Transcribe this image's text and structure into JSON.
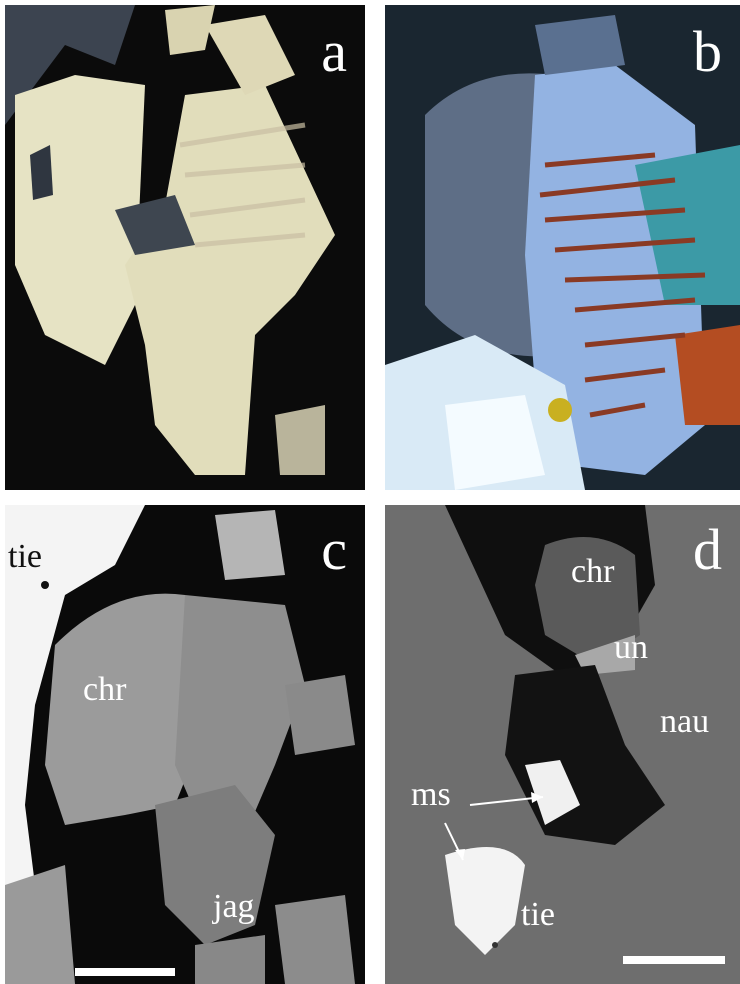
{
  "panels": [
    {
      "letter": "a"
    },
    {
      "letter": "b"
    },
    {
      "letter": "c",
      "labels": {
        "tie": "tie",
        "chr": "chr",
        "jag": "jag"
      }
    },
    {
      "letter": "d",
      "labels": {
        "chr": "chr",
        "un": "un",
        "nau": "nau",
        "ms": "ms",
        "tie": "tie"
      }
    }
  ],
  "colors": {
    "background_dark": "#0a0a0a",
    "grain_bright": "#e8e4c8",
    "bse_gray": "#7a7a7a",
    "bse_bright": "#f2f2f2",
    "twin_lamellae": "#8a3a24"
  }
}
